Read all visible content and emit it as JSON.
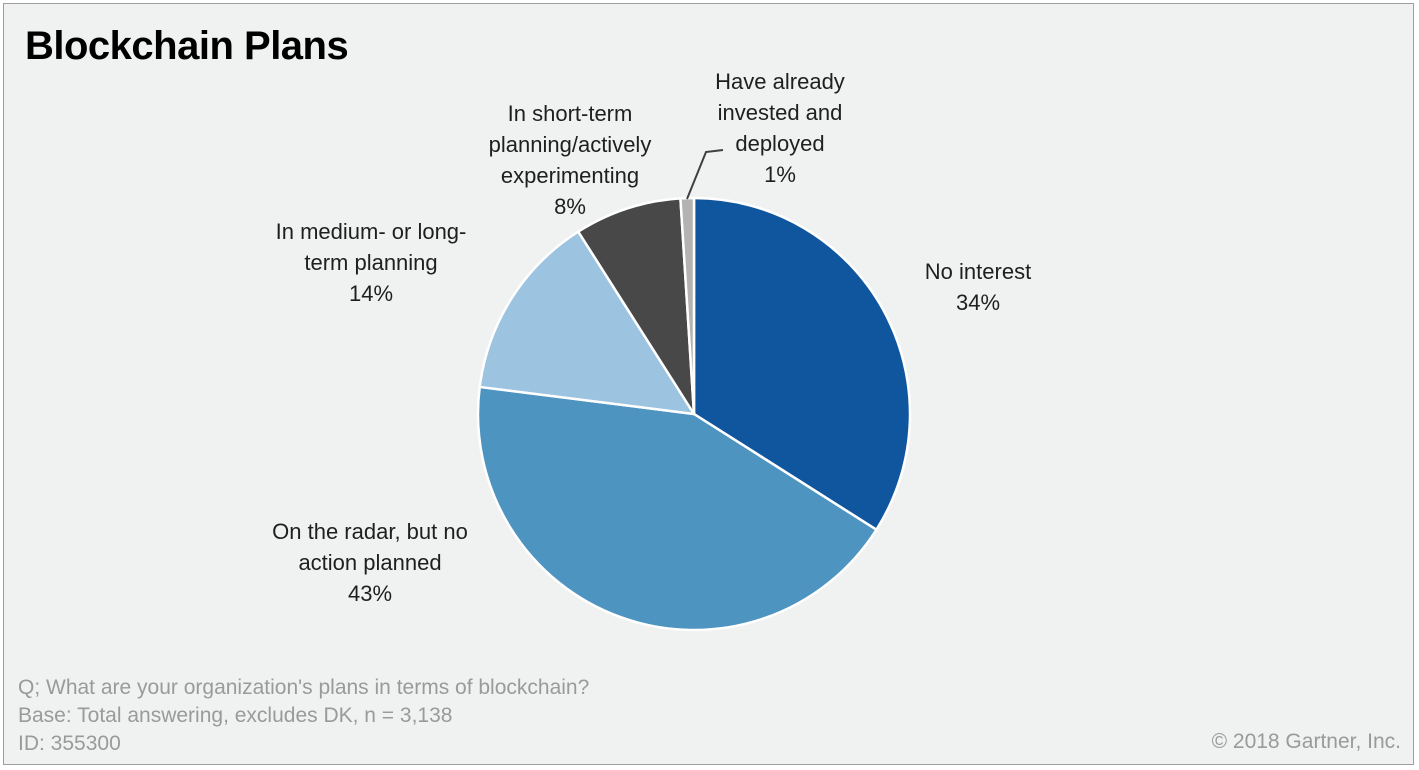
{
  "chart_data": {
    "type": "pie",
    "title": "Blockchain Plans",
    "unit": "%",
    "start_angle_deg": 0,
    "direction": "clockwise",
    "legend_position": "none",
    "slices": [
      {
        "label": "No interest",
        "value": 34,
        "color": "#10569F",
        "display": "No interest\n34%"
      },
      {
        "label": "On the radar, but no action planned",
        "value": 43,
        "color": "#4D94C1",
        "display": "On the radar,  but no\naction planned\n43%"
      },
      {
        "label": "In medium- or long-term planning",
        "value": 14,
        "color": "#9CC3E0",
        "display": "In medium- or long-\nterm planning\n14%"
      },
      {
        "label": "In short-term planning/actively experimenting",
        "value": 8,
        "color": "#484848",
        "display": "In short-term\nplanning/actively\nexperimenting\n8%"
      },
      {
        "label": "Have already invested and deployed",
        "value": 1,
        "color": "#B3B3B3",
        "display": "Have already\ninvested and\ndeployed\n1%"
      }
    ]
  },
  "footer": {
    "question": "Q; What are your organization's plans in terms of blockchain?",
    "base": "Base: Total  answering,  excludes  DK, n = 3,138",
    "id": "ID: 355300",
    "copyright": "© 2018 Gartner, Inc."
  },
  "colors": {
    "canvas_background": "#F0F1F1",
    "frame_border": "#9E9E9E",
    "slice_separator": "#FFFFFF",
    "leader_line": "#3F3F3F",
    "label_text": "#1F1F1F",
    "footer_text": "#9A9A9A"
  }
}
